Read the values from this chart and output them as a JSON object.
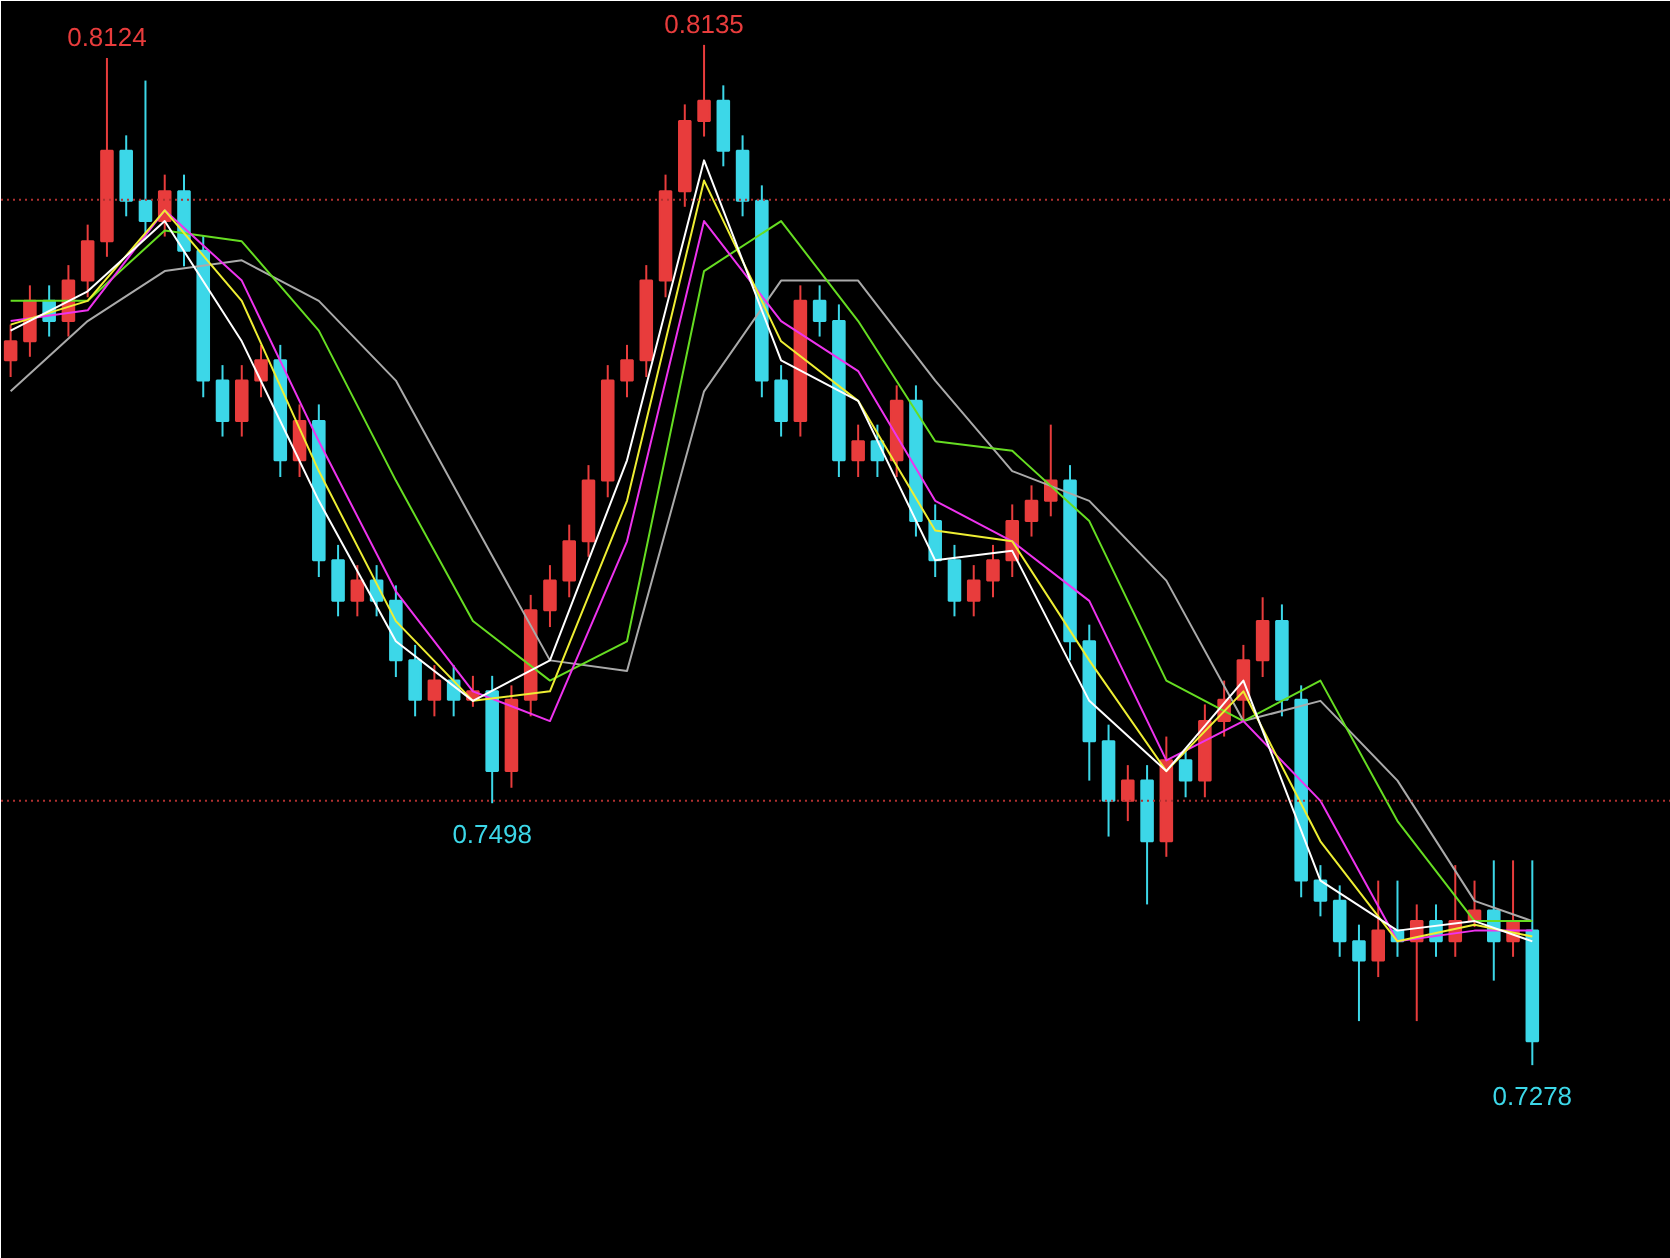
{
  "chart_data": {
    "type": "candlestick",
    "categories": [
      null,
      null,
      null,
      null,
      null,
      null,
      null,
      null,
      null,
      null,
      null,
      null,
      null,
      null,
      null,
      null,
      null,
      null,
      null,
      null,
      null,
      null,
      null,
      null,
      null,
      null,
      null,
      null,
      null,
      null,
      null,
      null,
      null,
      null,
      null,
      null,
      null,
      null,
      null,
      null,
      null,
      null,
      null,
      null,
      null,
      null,
      null,
      null,
      null,
      null,
      null,
      null,
      null,
      null,
      null,
      null,
      null,
      null,
      null,
      null,
      null,
      null,
      null,
      null,
      null,
      null,
      null,
      null,
      null,
      null,
      null,
      null,
      null,
      null,
      null,
      null,
      null,
      null,
      null,
      null
    ],
    "ohlc": [
      [
        0.787,
        0.79,
        0.7856,
        0.7886
      ],
      [
        0.7886,
        0.7933,
        0.7873,
        0.792
      ],
      [
        0.792,
        0.7933,
        0.789,
        0.7903
      ],
      [
        0.7903,
        0.795,
        0.789,
        0.7937
      ],
      [
        0.7937,
        0.7984,
        0.7923,
        0.797
      ],
      [
        0.797,
        0.8124,
        0.7957,
        0.8046
      ],
      [
        0.8046,
        0.8059,
        0.7991,
        0.8004
      ],
      [
        0.8004,
        0.8105,
        0.7974,
        0.7987
      ],
      [
        0.7987,
        0.8026,
        0.7974,
        0.8012
      ],
      [
        0.8012,
        0.8026,
        0.7949,
        0.7962
      ],
      [
        0.7962,
        0.7975,
        0.7839,
        0.7853
      ],
      [
        0.7853,
        0.7866,
        0.7806,
        0.7819
      ],
      [
        0.7819,
        0.7866,
        0.7806,
        0.7853
      ],
      [
        0.7853,
        0.7883,
        0.7839,
        0.787
      ],
      [
        0.787,
        0.7883,
        0.7772,
        0.7786
      ],
      [
        0.7786,
        0.7833,
        0.7772,
        0.7819
      ],
      [
        0.7819,
        0.7833,
        0.7688,
        0.7702
      ],
      [
        0.7702,
        0.7715,
        0.7655,
        0.7668
      ],
      [
        0.7668,
        0.7698,
        0.7655,
        0.7685
      ],
      [
        0.7685,
        0.7698,
        0.7655,
        0.7668
      ],
      [
        0.7668,
        0.7681,
        0.7604,
        0.7618
      ],
      [
        0.7618,
        0.7631,
        0.7571,
        0.7585
      ],
      [
        0.7585,
        0.7614,
        0.7571,
        0.7601
      ],
      [
        0.7601,
        0.7614,
        0.7571,
        0.7585
      ],
      [
        0.7585,
        0.7605,
        0.7579,
        0.7592
      ],
      [
        0.7592,
        0.7605,
        0.7498,
        0.7525
      ],
      [
        0.7525,
        0.7597,
        0.7511,
        0.7585
      ],
      [
        0.7585,
        0.7673,
        0.7571,
        0.766
      ],
      [
        0.766,
        0.7698,
        0.7646,
        0.7685
      ],
      [
        0.7685,
        0.7732,
        0.7671,
        0.7718
      ],
      [
        0.7718,
        0.7782,
        0.7705,
        0.7769
      ],
      [
        0.7769,
        0.7866,
        0.7755,
        0.7853
      ],
      [
        0.7853,
        0.7883,
        0.7839,
        0.787
      ],
      [
        0.787,
        0.795,
        0.7856,
        0.7937
      ],
      [
        0.7937,
        0.8026,
        0.7923,
        0.8012
      ],
      [
        0.8012,
        0.8085,
        0.7999,
        0.8071
      ],
      [
        0.8071,
        0.8135,
        0.8058,
        0.8088
      ],
      [
        0.8088,
        0.8101,
        0.8033,
        0.8046
      ],
      [
        0.8046,
        0.8059,
        0.7991,
        0.8004
      ],
      [
        0.8004,
        0.8017,
        0.7839,
        0.7853
      ],
      [
        0.7853,
        0.7866,
        0.7806,
        0.7819
      ],
      [
        0.7819,
        0.7933,
        0.7806,
        0.792
      ],
      [
        0.792,
        0.7933,
        0.789,
        0.7903
      ],
      [
        0.7903,
        0.7917,
        0.7772,
        0.7786
      ],
      [
        0.7786,
        0.7816,
        0.7772,
        0.7802
      ],
      [
        0.7802,
        0.7816,
        0.7772,
        0.7786
      ],
      [
        0.7786,
        0.7849,
        0.7772,
        0.7836
      ],
      [
        0.7836,
        0.7849,
        0.7722,
        0.7735
      ],
      [
        0.7735,
        0.7749,
        0.7688,
        0.7702
      ],
      [
        0.7702,
        0.7715,
        0.7655,
        0.7668
      ],
      [
        0.7668,
        0.7698,
        0.7655,
        0.7685
      ],
      [
        0.7685,
        0.7715,
        0.7671,
        0.7702
      ],
      [
        0.7702,
        0.7749,
        0.7688,
        0.7735
      ],
      [
        0.7735,
        0.7765,
        0.7722,
        0.7752
      ],
      [
        0.7752,
        0.7816,
        0.7739,
        0.7769
      ],
      [
        0.7769,
        0.7782,
        0.7618,
        0.7634
      ],
      [
        0.7634,
        0.7648,
        0.7517,
        0.755
      ],
      [
        0.755,
        0.7564,
        0.747,
        0.75
      ],
      [
        0.75,
        0.753,
        0.7483,
        0.7517
      ],
      [
        0.7517,
        0.753,
        0.7413,
        0.7466
      ],
      [
        0.7466,
        0.7554,
        0.7453,
        0.7534
      ],
      [
        0.7534,
        0.7542,
        0.7503,
        0.7517
      ],
      [
        0.7517,
        0.7581,
        0.7503,
        0.7567
      ],
      [
        0.7567,
        0.7601,
        0.7554,
        0.7585
      ],
      [
        0.7585,
        0.7631,
        0.7567,
        0.7618
      ],
      [
        0.7618,
        0.7671,
        0.7604,
        0.7651
      ],
      [
        0.7651,
        0.7665,
        0.7571,
        0.7585
      ],
      [
        0.7585,
        0.7597,
        0.7419,
        0.7433
      ],
      [
        0.7433,
        0.7446,
        0.7403,
        0.7416
      ],
      [
        0.7416,
        0.7429,
        0.7369,
        0.7382
      ],
      [
        0.7382,
        0.7396,
        0.7315,
        0.7366
      ],
      [
        0.7366,
        0.7433,
        0.7352,
        0.7391
      ],
      [
        0.7391,
        0.7433,
        0.7369,
        0.7382
      ],
      [
        0.7382,
        0.7413,
        0.7315,
        0.7399
      ],
      [
        0.7399,
        0.7413,
        0.7369,
        0.7382
      ],
      [
        0.7382,
        0.7446,
        0.7369,
        0.7399
      ],
      [
        0.7399,
        0.7433,
        0.7394,
        0.7408
      ],
      [
        0.7408,
        0.745,
        0.7349,
        0.7382
      ],
      [
        0.7382,
        0.745,
        0.7369,
        0.7399
      ],
      [
        0.7391,
        0.745,
        0.7278,
        0.7298
      ]
    ],
    "series": [
      {
        "type": "line",
        "color": "#aaaaaa",
        "values": [
          0.7844,
          null,
          null,
          null,
          0.7903,
          null,
          null,
          null,
          0.7945,
          null,
          null,
          null,
          0.7954,
          null,
          null,
          null,
          0.792,
          null,
          null,
          null,
          0.7853,
          null,
          null,
          null,
          0.7735,
          null,
          null,
          null,
          0.7618,
          null,
          null,
          null,
          0.7609,
          null,
          null,
          null,
          0.7844,
          null,
          null,
          null,
          0.7937,
          null,
          null,
          null,
          0.7937,
          null,
          null,
          null,
          0.7853,
          null,
          null,
          null,
          0.7777,
          null,
          null,
          null,
          0.7752,
          null,
          null,
          null,
          0.7685,
          null,
          null,
          null,
          0.7567,
          null,
          null,
          null,
          0.7584,
          null,
          null,
          null,
          0.7517,
          null,
          null,
          null,
          0.7416,
          null,
          null,
          0.7399
        ]
      },
      {
        "type": "line",
        "color": "#66dd22",
        "values": [
          0.792,
          null,
          null,
          null,
          0.792,
          null,
          null,
          null,
          0.7979,
          null,
          null,
          null,
          0.797,
          null,
          null,
          null,
          0.7895,
          null,
          null,
          null,
          0.7769,
          null,
          null,
          null,
          0.7651,
          null,
          null,
          null,
          0.7601,
          null,
          null,
          null,
          0.7634,
          null,
          null,
          null,
          0.7945,
          null,
          null,
          null,
          0.7987,
          null,
          null,
          null,
          0.7903,
          null,
          null,
          null,
          0.7802,
          null,
          null,
          null,
          0.7794,
          null,
          null,
          null,
          0.7735,
          null,
          null,
          null,
          0.7601,
          null,
          null,
          null,
          0.7567,
          null,
          null,
          null,
          0.7601,
          null,
          null,
          null,
          0.7483,
          null,
          null,
          null,
          0.7399,
          null,
          null,
          0.7399
        ]
      },
      {
        "type": "line",
        "color": "#ee33ee",
        "values": [
          0.7903,
          null,
          null,
          null,
          0.7912,
          null,
          null,
          null,
          0.7996,
          null,
          null,
          null,
          0.7937,
          null,
          null,
          null,
          0.7802,
          null,
          null,
          null,
          0.7676,
          null,
          null,
          null,
          0.7592,
          null,
          null,
          null,
          0.7567,
          null,
          null,
          null,
          0.7718,
          null,
          null,
          null,
          0.7987,
          null,
          null,
          null,
          0.7903,
          null,
          null,
          null,
          0.7861,
          null,
          null,
          null,
          0.7752,
          null,
          null,
          null,
          0.7718,
          null,
          null,
          null,
          0.7668,
          null,
          null,
          null,
          0.7534,
          null,
          null,
          null,
          0.7567,
          null,
          null,
          null,
          0.75,
          null,
          null,
          null,
          0.7382,
          null,
          null,
          null,
          0.7391,
          null,
          null,
          0.7391
        ]
      },
      {
        "type": "line",
        "color": "#eeee33",
        "values": [
          0.79,
          null,
          null,
          null,
          0.792,
          null,
          null,
          null,
          0.7996,
          null,
          null,
          null,
          0.792,
          null,
          null,
          null,
          0.7777,
          null,
          null,
          null,
          0.7651,
          null,
          null,
          null,
          0.7584,
          null,
          null,
          null,
          0.7592,
          null,
          null,
          null,
          0.7752,
          null,
          null,
          null,
          0.8021,
          null,
          null,
          null,
          0.7886,
          null,
          null,
          null,
          0.7836,
          null,
          null,
          null,
          0.7727,
          null,
          null,
          null,
          0.7718,
          null,
          null,
          null,
          0.7618,
          null,
          null,
          null,
          0.7525,
          null,
          null,
          null,
          0.7592,
          null,
          null,
          null,
          0.7466,
          null,
          null,
          null,
          0.7382,
          null,
          null,
          null,
          0.7396,
          null,
          null,
          0.7386
        ]
      },
      {
        "type": "line",
        "color": "#ffffff",
        "values": [
          0.7895,
          null,
          null,
          null,
          0.7928,
          null,
          null,
          null,
          0.7987,
          null,
          null,
          null,
          0.7886,
          null,
          null,
          null,
          0.7752,
          null,
          null,
          null,
          0.7634,
          null,
          null,
          null,
          0.7584,
          null,
          null,
          null,
          0.7618,
          null,
          null,
          null,
          0.7786,
          null,
          null,
          null,
          0.8038,
          null,
          null,
          null,
          0.787,
          null,
          null,
          null,
          0.7836,
          null,
          null,
          null,
          0.7702,
          null,
          null,
          null,
          0.771,
          null,
          null,
          null,
          0.7584,
          null,
          null,
          null,
          0.7525,
          null,
          null,
          null,
          0.7601,
          null,
          null,
          null,
          0.7433,
          null,
          null,
          null,
          0.7391,
          null,
          null,
          null,
          0.7399,
          null,
          null,
          0.7382
        ]
      }
    ],
    "ref_lines": [
      {
        "axis": "y",
        "value": 0.8005,
        "color": "#b03030",
        "line_style": "dotted"
      },
      {
        "axis": "y",
        "value": 0.75,
        "color": "#b03030",
        "line_style": "dotted"
      }
    ],
    "annotations": [
      {
        "text": "0.8124",
        "y": 0.8124
      },
      {
        "text": "0.8135",
        "y": 0.8135
      },
      {
        "text": "0.7498",
        "y": 0.7498
      },
      {
        "text": "0.7278",
        "y": 0.7278
      }
    ],
    "tick_labels": false,
    "grid": false
  }
}
